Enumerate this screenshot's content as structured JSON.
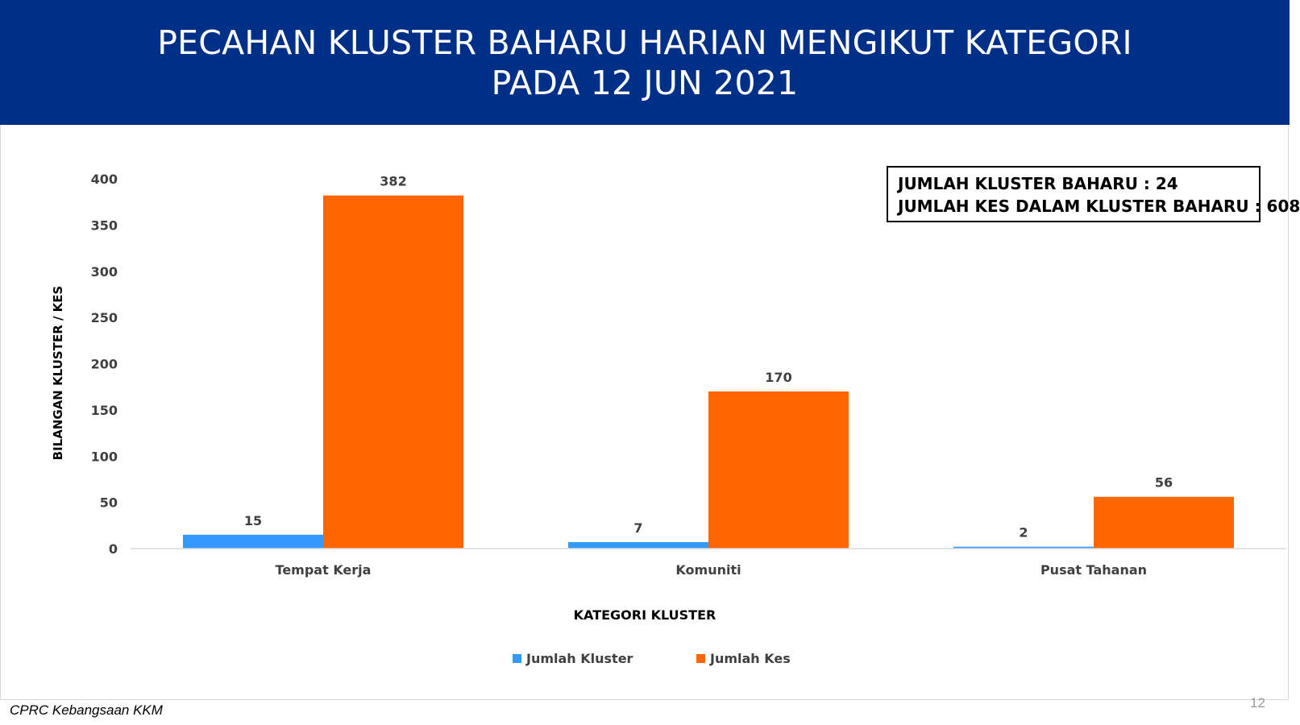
{
  "header": {
    "title_line1": "PECAHAN KLUSTER BAHARU HARIAN MENGIKUT KATEGORI",
    "title_line2": "PADA 12 JUN 2021"
  },
  "summary": {
    "line1": "JUMLAH KLUSTER BAHARU : 24",
    "line2": "JUMLAH KES DALAM KLUSTER BAHARU : 608"
  },
  "chart_data": {
    "type": "bar",
    "categories": [
      "Tempat Kerja",
      "Komuniti",
      "Pusat Tahanan"
    ],
    "series": [
      {
        "name": "Jumlah Kluster",
        "values": [
          15,
          7,
          2
        ],
        "color": "#3399ff"
      },
      {
        "name": "Jumlah Kes",
        "values": [
          382,
          170,
          56
        ],
        "color": "#ff6600"
      }
    ],
    "xlabel": "KATEGORI KLUSTER",
    "ylabel": "BILANGAN KLUSTER / KES",
    "ylim": [
      0,
      400
    ],
    "yticks": [
      0,
      50,
      100,
      150,
      200,
      250,
      300,
      350,
      400
    ],
    "grid": false,
    "legend_position": "bottom",
    "data_labels": true
  },
  "footer": {
    "source": "CPRC Kebangsaan KKM",
    "page_number": "12"
  }
}
